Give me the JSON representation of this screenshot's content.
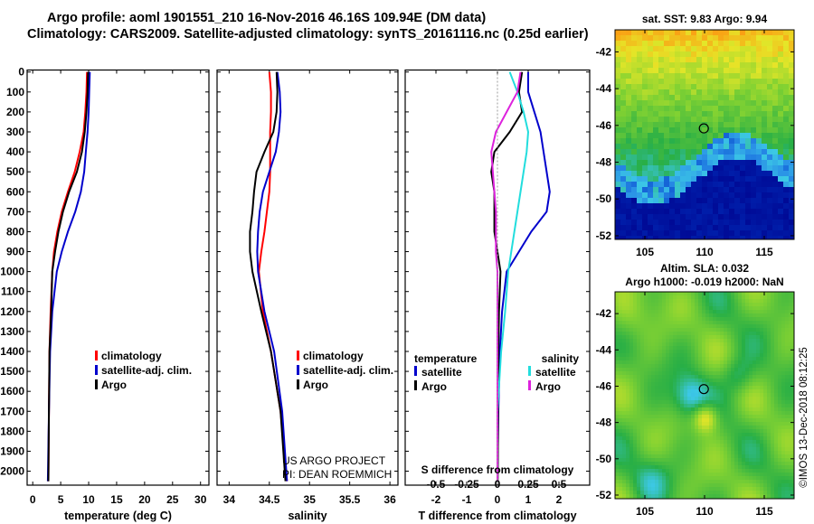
{
  "header": {
    "title_line1": "Argo profile: aoml 1901551_210 16-Nov-2016 46.16S 109.94E (DM data)",
    "title_line2": "Climatology: CARS2009. Satellite-adjusted climatology: synTS_20161116.nc (0.25d earlier)"
  },
  "colors": {
    "climatology": "#ff0000",
    "satellite": "#0000cc",
    "argo": "#000000",
    "sat_temperature_diff": "#0000cc",
    "argo_temperature_diff": "#000000",
    "sat_salinity_diff": "#22dddd",
    "argo_salinity_diff": "#dd22dd"
  },
  "chart_data": [
    {
      "type": "line",
      "xlabel": "temperature (deg C)",
      "ylabel": "",
      "xlim": [
        -1,
        31.5
      ],
      "ylim": [
        2070,
        -10
      ],
      "xticks": [
        "0",
        "5",
        "10",
        "15",
        "20",
        "25",
        "30"
      ],
      "yticks": [
        "0",
        "100",
        "200",
        "300",
        "400",
        "500",
        "600",
        "700",
        "800",
        "900",
        "1000",
        "1100",
        "1200",
        "1300",
        "1400",
        "1500",
        "1600",
        "1700",
        "1800",
        "1900",
        "2000"
      ],
      "legend": [
        "climatology",
        "satellite-adj. clim.",
        "Argo"
      ],
      "series": [
        {
          "name": "climatology",
          "color": "climatology",
          "x": [
            9.7,
            9.6,
            9.4,
            9.1,
            8.4,
            7.5,
            6.3,
            5.2,
            4.4,
            3.8,
            3.5,
            3.2,
            3.0,
            2.9,
            2.8
          ],
          "y": [
            0,
            100,
            200,
            300,
            400,
            500,
            600,
            700,
            800,
            900,
            1000,
            1200,
            1400,
            1700,
            2050
          ]
        },
        {
          "name": "satellite-adj. clim.",
          "color": "satellite",
          "x": [
            10.2,
            10.1,
            10.0,
            9.8,
            9.5,
            9.2,
            8.6,
            7.6,
            6.3,
            5.2,
            4.3,
            3.5,
            3.1,
            2.9,
            2.7
          ],
          "y": [
            0,
            100,
            200,
            300,
            400,
            500,
            600,
            700,
            800,
            900,
            1000,
            1200,
            1400,
            1700,
            2050
          ]
        },
        {
          "name": "Argo",
          "color": "argo",
          "x": [
            9.9,
            9.8,
            9.6,
            9.3,
            8.8,
            7.9,
            6.5,
            5.4,
            4.6,
            4.0,
            3.5,
            3.3,
            3.0,
            2.9,
            2.8
          ],
          "y": [
            0,
            100,
            200,
            300,
            400,
            500,
            600,
            700,
            800,
            900,
            1000,
            1200,
            1400,
            1700,
            2050
          ]
        }
      ]
    },
    {
      "type": "line",
      "xlabel": "salinity",
      "ylabel": "",
      "xlim": [
        33.85,
        36.1
      ],
      "ylim": [
        2070,
        -10
      ],
      "xticks": [
        "34",
        "34.5",
        "35",
        "35.5",
        "36"
      ],
      "legend": [
        "climatology",
        "satellite-adj. clim.",
        "Argo"
      ],
      "annotation": [
        "US ARGO PROJECT",
        "PI: DEAN ROEMMICH"
      ],
      "series": [
        {
          "name": "climatology",
          "color": "climatology",
          "x": [
            34.5,
            34.52,
            34.52,
            34.51,
            34.51,
            34.51,
            34.5,
            34.47,
            34.44,
            34.4,
            34.37,
            34.42,
            34.52,
            34.64,
            34.72
          ],
          "y": [
            0,
            100,
            200,
            300,
            400,
            500,
            600,
            700,
            800,
            900,
            1000,
            1200,
            1400,
            1700,
            2050
          ]
        },
        {
          "name": "satellite-adj. clim.",
          "color": "satellite",
          "x": [
            34.6,
            34.63,
            34.64,
            34.62,
            34.58,
            34.5,
            34.42,
            34.38,
            34.36,
            34.35,
            34.36,
            34.44,
            34.56,
            34.66,
            34.72
          ],
          "y": [
            0,
            100,
            200,
            300,
            400,
            500,
            600,
            700,
            800,
            900,
            1000,
            1200,
            1400,
            1700,
            2050
          ]
        },
        {
          "name": "Argo",
          "color": "argo",
          "x": [
            34.59,
            34.6,
            34.59,
            34.55,
            34.44,
            34.34,
            34.31,
            34.29,
            34.26,
            34.26,
            34.29,
            34.4,
            34.52,
            34.64,
            34.7
          ],
          "y": [
            0,
            100,
            200,
            300,
            400,
            500,
            600,
            700,
            800,
            900,
            1000,
            1200,
            1400,
            1700,
            2050
          ]
        }
      ]
    },
    {
      "type": "line",
      "xlabel": "T difference from climatology",
      "top_axis_label": "S difference from climatology",
      "xlim": [
        -3,
        3
      ],
      "ylim": [
        2070,
        -10
      ],
      "xticks": [
        "-2",
        "-1",
        "0",
        "1",
        "2"
      ],
      "top_xticks": [
        "-0.5",
        "-0.25",
        "0",
        "0.25",
        "0.5"
      ],
      "legend_left_title": "temperature",
      "legend_right_title": "salinity",
      "legend": [
        "satellite",
        "Argo",
        "satellite",
        "Argo"
      ],
      "series": [
        {
          "name": "satellite",
          "color": "sat_temperature_diff",
          "x": [
            1.0,
            1.0,
            1.2,
            1.4,
            1.5,
            1.6,
            1.7,
            1.6,
            1.1,
            0.7,
            0.3,
            0.15,
            0.08,
            0.03,
            0.0
          ],
          "y": [
            0,
            100,
            200,
            300,
            400,
            500,
            600,
            700,
            800,
            900,
            1000,
            1200,
            1400,
            1700,
            2050
          ]
        },
        {
          "name": "Argo",
          "color": "argo_temperature_diff",
          "x": [
            0.8,
            0.7,
            0.8,
            0.4,
            -0.1,
            -0.2,
            -0.1,
            -0.1,
            -0.1,
            0.0,
            0.1,
            0.05,
            0.03,
            0.02,
            0.01
          ],
          "y": [
            0,
            100,
            200,
            300,
            400,
            500,
            600,
            700,
            800,
            900,
            1000,
            1200,
            1400,
            1700,
            2050
          ]
        },
        {
          "name": "satellite",
          "color": "sat_salinity_diff",
          "x": [
            0.4,
            0.65,
            0.85,
            1.0,
            0.95,
            0.85,
            0.75,
            0.65,
            0.55,
            0.45,
            0.35,
            0.25,
            0.12,
            0.0,
            0.0
          ],
          "y": [
            0,
            100,
            200,
            300,
            400,
            500,
            600,
            700,
            800,
            900,
            1000,
            1200,
            1400,
            1700,
            2050
          ]
        },
        {
          "name": "Argo",
          "color": "argo_salinity_diff",
          "x": [
            0.75,
            0.65,
            0.3,
            -0.05,
            -0.2,
            -0.15,
            -0.1,
            -0.05,
            -0.05,
            -0.05,
            0.0,
            0.0,
            0.0,
            0.0,
            0.0
          ],
          "y": [
            0,
            100,
            200,
            300,
            400,
            500,
            600,
            700,
            800,
            900,
            1000,
            1200,
            1400,
            1700,
            2050
          ]
        }
      ]
    },
    {
      "type": "heatmap",
      "title": "sat. SST: 9.83 Argo: 9.94",
      "xlim": [
        102.5,
        117.5
      ],
      "ylim": [
        -52.2,
        -40.8
      ],
      "xticks": [
        "105",
        "110",
        "115"
      ],
      "yticks": [
        "-42",
        "-44",
        "-46",
        "-48",
        "-50",
        "-52"
      ],
      "marker": {
        "x": 109.94,
        "y": -46.16
      }
    },
    {
      "type": "heatmap",
      "title": "Altim. SLA: 0.032",
      "subtitle": "Argo h1000: -0.019 h2000: NaN",
      "xlim": [
        102.5,
        117.5
      ],
      "ylim": [
        -52.2,
        -40.8
      ],
      "xticks": [
        "105",
        "110",
        "115"
      ],
      "yticks": [
        "-42",
        "-44",
        "-46",
        "-48",
        "-50",
        "-52"
      ],
      "marker": {
        "x": 109.94,
        "y": -46.16
      }
    }
  ],
  "footer": {
    "stamp": "©IMOS 13-Dec-2018 08:12:25"
  }
}
